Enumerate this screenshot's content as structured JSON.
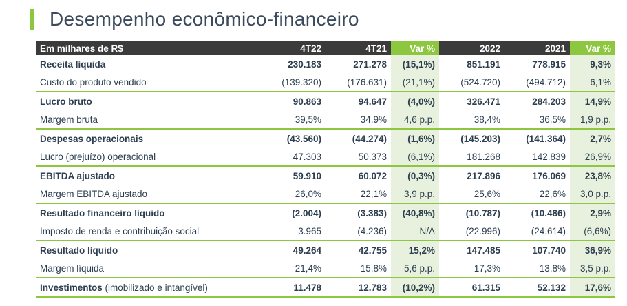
{
  "title": "Desempenho econômico-financeiro",
  "colors": {
    "accent": "#8dc63f",
    "header_dark": "#3b3b3b",
    "var_bg": "#e8f1dd",
    "text": "#2c3e50"
  },
  "table": {
    "headers": [
      "Em milhares de R$",
      "4T22",
      "4T21",
      "Var %",
      "2022",
      "2021",
      "Var %"
    ],
    "rows": [
      {
        "label": "Receita líquida",
        "note": "",
        "bold": true,
        "group_start": false,
        "values": [
          "230.183",
          "271.278",
          "(15,1%)",
          "851.191",
          "778.915",
          "9,3%"
        ]
      },
      {
        "label": "Custo do produto vendido",
        "note": "",
        "bold": false,
        "group_start": false,
        "values": [
          "(139.320)",
          "(176.631)",
          "(21,1%)",
          "(524.720)",
          "(494.712)",
          "6,1%"
        ]
      },
      {
        "label": "Lucro bruto",
        "note": "",
        "bold": true,
        "group_start": true,
        "values": [
          "90.863",
          "94.647",
          "(4,0%)",
          "326.471",
          "284.203",
          "14,9%"
        ]
      },
      {
        "label": "Margem bruta",
        "note": "",
        "bold": false,
        "group_start": false,
        "values": [
          "39,5%",
          "34,9%",
          "4,6 p.p.",
          "38,4%",
          "36,5%",
          "1,9 p.p."
        ]
      },
      {
        "label": "Despesas operacionais",
        "note": "",
        "bold": true,
        "group_start": true,
        "values": [
          "(43.560)",
          "(44.274)",
          "(1,6%)",
          "(145.203)",
          "(141.364)",
          "2,7%"
        ]
      },
      {
        "label": "Lucro (prejuízo) operacional",
        "note": "",
        "bold": false,
        "group_start": false,
        "values": [
          "47.303",
          "50.373",
          "(6,1%)",
          "181.268",
          "142.839",
          "26,9%"
        ]
      },
      {
        "label": "EBITDA ajustado",
        "note": "",
        "bold": true,
        "group_start": true,
        "values": [
          "59.910",
          "60.072",
          "(0,3%)",
          "217.896",
          "176.069",
          "23,8%"
        ]
      },
      {
        "label": "Margem EBITDA ajustado",
        "note": "",
        "bold": false,
        "group_start": false,
        "values": [
          "26,0%",
          "22,1%",
          "3,9 p.p.",
          "25,6%",
          "22,6%",
          "3,0 p.p."
        ]
      },
      {
        "label": "Resultado financeiro líquido",
        "note": "",
        "bold": true,
        "group_start": true,
        "values": [
          "(2.004)",
          "(3.383)",
          "(40,8%)",
          "(10.787)",
          "(10.486)",
          "2,9%"
        ]
      },
      {
        "label": "Imposto de renda e contribuição social",
        "note": "",
        "bold": false,
        "group_start": false,
        "values": [
          "3.965",
          "(4.236)",
          "N/A",
          "(22.996)",
          "(24.614)",
          "(6,6%)"
        ]
      },
      {
        "label": "Resultado líquido",
        "note": "",
        "bold": true,
        "group_start": true,
        "values": [
          "49.264",
          "42.755",
          "15,2%",
          "147.485",
          "107.740",
          "36,9%"
        ]
      },
      {
        "label": "Margem líquida",
        "note": "",
        "bold": false,
        "group_start": false,
        "values": [
          "21,4%",
          "15,8%",
          "5,6 p.p.",
          "17,3%",
          "13,8%",
          "3,5 p.p."
        ]
      },
      {
        "label": "Investimentos",
        "note": " (imobilizado e intangível)",
        "bold": true,
        "group_start": true,
        "values": [
          "11.478",
          "12.783",
          "(10,2%)",
          "61.315",
          "52.132",
          "17,6%"
        ]
      }
    ]
  }
}
